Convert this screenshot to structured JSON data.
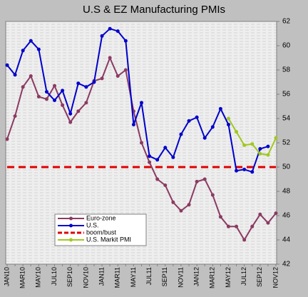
{
  "chart_data": {
    "type": "line",
    "title": "U.S & EZ Manufacturing PMIs",
    "categories": [
      "JAN10",
      null,
      "MAR10",
      null,
      "MAY10",
      null,
      "JUL10",
      null,
      "SEP10",
      null,
      "NOV10",
      null,
      "JAN11",
      null,
      "MAR11",
      null,
      "MAY11",
      null,
      "JUL11",
      null,
      "SEP11",
      null,
      "NOV11",
      null,
      "JAN12",
      null,
      "MAR12",
      null,
      "MAY12",
      null,
      "JUL12",
      null,
      "SEP12",
      null,
      "NOV12"
    ],
    "series": [
      {
        "name": "Euro-zone",
        "color": "#8b3a62",
        "values": [
          52.3,
          54.2,
          56.6,
          57.5,
          55.8,
          55.6,
          56.7,
          55.1,
          53.7,
          54.6,
          55.3,
          57.1,
          57.3,
          59.0,
          57.5,
          58.0,
          54.6,
          52.0,
          50.4,
          49.0,
          48.5,
          47.1,
          46.4,
          46.9,
          48.8,
          49.0,
          47.7,
          45.9,
          45.1,
          45.1,
          44.0,
          45.1,
          46.1,
          45.4,
          46.2
        ]
      },
      {
        "name": "U.S.",
        "color": "#0000cc",
        "values": [
          58.4,
          57.6,
          59.6,
          60.4,
          59.7,
          56.2,
          55.5,
          56.3,
          54.4,
          56.9,
          56.6,
          57.0,
          60.8,
          61.4,
          61.2,
          60.4,
          53.5,
          55.3,
          50.9,
          50.6,
          51.6,
          50.8,
          52.7,
          53.8,
          54.1,
          52.4,
          53.3,
          54.8,
          53.5,
          49.7,
          49.8,
          49.6,
          51.5,
          51.7,
          null
        ]
      },
      {
        "name": "U.S. Markit PMI",
        "color": "#a0c820",
        "values": [
          null,
          null,
          null,
          null,
          null,
          null,
          null,
          null,
          null,
          null,
          null,
          null,
          null,
          null,
          null,
          null,
          null,
          null,
          null,
          null,
          null,
          null,
          null,
          null,
          null,
          null,
          null,
          null,
          54.0,
          52.9,
          51.8,
          51.9,
          51.1,
          51.0,
          52.4
        ]
      }
    ],
    "threshold": {
      "name": "boom/bust",
      "value": 50,
      "color": "#e00000"
    },
    "ylim": [
      42,
      62
    ],
    "yticks": [
      42,
      44,
      46,
      48,
      50,
      52,
      54,
      56,
      58,
      60,
      62
    ],
    "grid": false
  }
}
